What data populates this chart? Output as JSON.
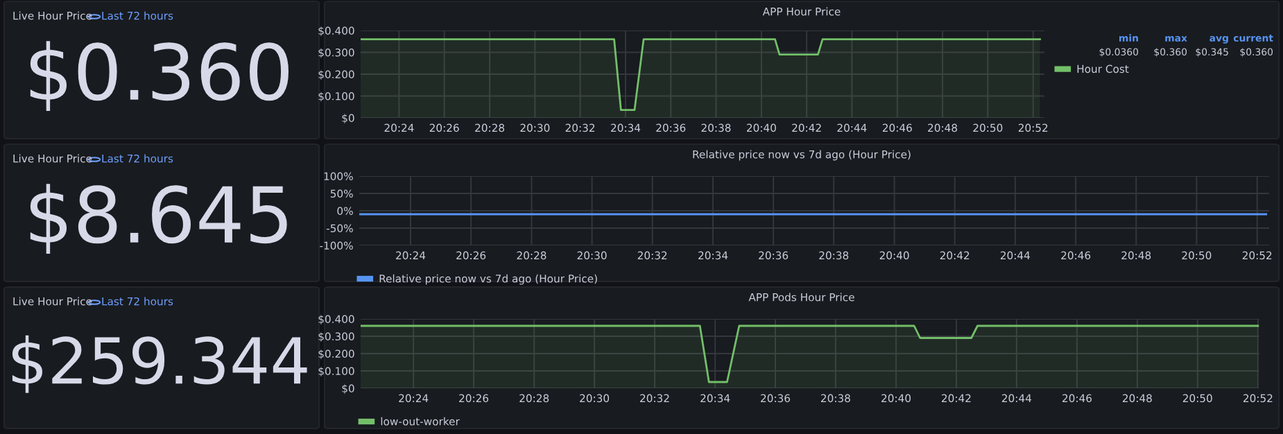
{
  "chart_data": [
    {
      "type": "other",
      "title": "Live Hour Price",
      "subtitle": "Last 72 hours",
      "annotations": [
        "$0.360"
      ]
    },
    {
      "type": "area",
      "title": "APP Hour Price",
      "x": [
        20.3717,
        20.5583,
        20.5633,
        20.5733,
        20.58,
        20.6767,
        20.68,
        20.7083,
        20.7117,
        20.8717
      ],
      "series": [
        {
          "name": "Hour Cost",
          "color": "#73bf69",
          "values": [
            0.36,
            0.36,
            0.036,
            0.036,
            0.36,
            0.36,
            0.29,
            0.29,
            0.36,
            0.36
          ]
        }
      ],
      "xlim": [
        20.3717,
        20.875
      ],
      "ylim": [
        0,
        0.4
      ],
      "xticks": [
        {
          "value": 20.4,
          "label": "20:24"
        },
        {
          "value": 20.4333,
          "label": "20:26"
        },
        {
          "value": 20.4667,
          "label": "20:28"
        },
        {
          "value": 20.5,
          "label": "20:30"
        },
        {
          "value": 20.5333,
          "label": "20:32"
        },
        {
          "value": 20.5667,
          "label": "20:34"
        },
        {
          "value": 20.6,
          "label": "20:36"
        },
        {
          "value": 20.6333,
          "label": "20:38"
        },
        {
          "value": 20.6667,
          "label": "20:40"
        },
        {
          "value": 20.7,
          "label": "20:42"
        },
        {
          "value": 20.7333,
          "label": "20:44"
        },
        {
          "value": 20.7667,
          "label": "20:46"
        },
        {
          "value": 20.8,
          "label": "20:48"
        },
        {
          "value": 20.8333,
          "label": "20:50"
        },
        {
          "value": 20.8667,
          "label": "20:52"
        }
      ],
      "yticks": [
        {
          "value": 0,
          "label": "$0"
        },
        {
          "value": 0.1,
          "label": "$0.100"
        },
        {
          "value": 0.2,
          "label": "$0.200"
        },
        {
          "value": 0.3,
          "label": "$0.300"
        },
        {
          "value": 0.4,
          "label": "$0.400"
        }
      ],
      "grid": true,
      "legend": "right",
      "annotations": [
        "min",
        "max",
        "avg",
        "current",
        "$0.0360",
        "$0.360",
        "$0.345",
        "$0.360"
      ]
    },
    {
      "type": "other",
      "title": "Live Hour Price",
      "subtitle": "Last 72 hours",
      "annotations": [
        "$8.645"
      ]
    },
    {
      "type": "line",
      "title": "Relative price now vs 7d ago (Hour Price)",
      "x": [
        20.3717,
        20.8717
      ],
      "series": [
        {
          "name": "Relative price now vs 7d ago (Hour Price)",
          "color": "#5794f2",
          "values": [
            -10,
            -10
          ]
        }
      ],
      "xlim": [
        20.3717,
        20.8733
      ],
      "ylim": [
        -100,
        100
      ],
      "xticks": [
        {
          "value": 20.4,
          "label": "20:24"
        },
        {
          "value": 20.4333,
          "label": "20:26"
        },
        {
          "value": 20.4667,
          "label": "20:28"
        },
        {
          "value": 20.5,
          "label": "20:30"
        },
        {
          "value": 20.5333,
          "label": "20:32"
        },
        {
          "value": 20.5667,
          "label": "20:34"
        },
        {
          "value": 20.6,
          "label": "20:36"
        },
        {
          "value": 20.6333,
          "label": "20:38"
        },
        {
          "value": 20.6667,
          "label": "20:40"
        },
        {
          "value": 20.7,
          "label": "20:42"
        },
        {
          "value": 20.7333,
          "label": "20:44"
        },
        {
          "value": 20.7667,
          "label": "20:46"
        },
        {
          "value": 20.8,
          "label": "20:48"
        },
        {
          "value": 20.8333,
          "label": "20:50"
        },
        {
          "value": 20.8667,
          "label": "20:52"
        }
      ],
      "yticks": [
        {
          "value": -100,
          "label": "-100%"
        },
        {
          "value": -50,
          "label": "-50%"
        },
        {
          "value": 0,
          "label": "0%"
        },
        {
          "value": 50,
          "label": "50%"
        },
        {
          "value": 100,
          "label": "100%"
        }
      ],
      "grid": true,
      "legend": "bottom"
    },
    {
      "type": "other",
      "title": "Live Hour Price",
      "subtitle": "Last 72 hours",
      "annotations": [
        "$259.344"
      ]
    },
    {
      "type": "area",
      "title": "APP Pods Hour Price",
      "x": [
        20.3708,
        20.5583,
        20.5633,
        20.5733,
        20.58,
        20.6767,
        20.68,
        20.7083,
        20.7117,
        20.8667
      ],
      "series": [
        {
          "name": "low-out-worker",
          "color": "#73bf69",
          "values": [
            0.36,
            0.36,
            0.036,
            0.036,
            0.36,
            0.36,
            0.29,
            0.29,
            0.36,
            0.36
          ]
        }
      ],
      "xlim": [
        20.3708,
        20.8675
      ],
      "ylim": [
        0,
        0.4
      ],
      "xticks": [
        {
          "value": 20.4,
          "label": "20:24"
        },
        {
          "value": 20.4333,
          "label": "20:26"
        },
        {
          "value": 20.4667,
          "label": "20:28"
        },
        {
          "value": 20.5,
          "label": "20:30"
        },
        {
          "value": 20.5333,
          "label": "20:32"
        },
        {
          "value": 20.5667,
          "label": "20:34"
        },
        {
          "value": 20.6,
          "label": "20:36"
        },
        {
          "value": 20.6333,
          "label": "20:38"
        },
        {
          "value": 20.6667,
          "label": "20:40"
        },
        {
          "value": 20.7,
          "label": "20:42"
        },
        {
          "value": 20.7333,
          "label": "20:44"
        },
        {
          "value": 20.7667,
          "label": "20:46"
        },
        {
          "value": 20.8,
          "label": "20:48"
        },
        {
          "value": 20.8333,
          "label": "20:50"
        },
        {
          "value": 20.8667,
          "label": "20:52"
        }
      ],
      "yticks": [
        {
          "value": 0,
          "label": "$0"
        },
        {
          "value": 0.1,
          "label": "$0.100"
        },
        {
          "value": 0.2,
          "label": "$0.200"
        },
        {
          "value": 0.3,
          "label": "$0.300"
        },
        {
          "value": 0.4,
          "label": "$0.400"
        }
      ],
      "grid": true,
      "legend": "bottom"
    }
  ]
}
